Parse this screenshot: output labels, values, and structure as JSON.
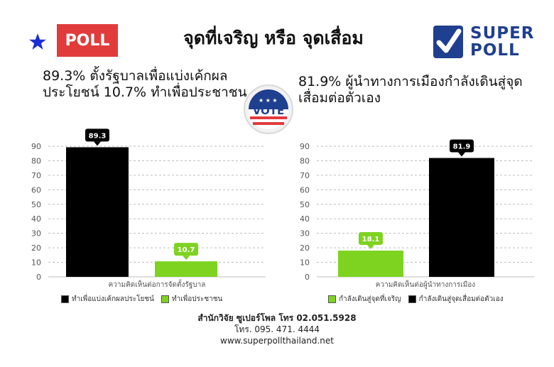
{
  "header": {
    "badge": "POLL",
    "title": "จุดที่เจริญ หรือ จุดเสื่อม",
    "logo_line1": "SUPER",
    "logo_line2": "POLL",
    "vote_badge": "VOTE",
    "accent_red": "#e23b3b",
    "brand_blue": "#1f3f8f"
  },
  "left_heading": "89.3% ตั้งรัฐบาลเพื่อแบ่งเค้กผลประโยชน์ 10.7% ทำเพื่อประชาชน",
  "right_heading": "81.9% ผู้นำทางการเมืองกำลังเดินสู่จุดเสื่อมต่อตัวเอง",
  "chart_data": [
    {
      "type": "bar",
      "xlabel": "ความคิดเห็นต่อการจัดตั้งรัฐบาล",
      "ylim": [
        0,
        90
      ],
      "yticks": [
        0,
        10,
        20,
        30,
        40,
        50,
        60,
        70,
        80,
        90
      ],
      "grid": true,
      "legend_position": "bottom",
      "series": [
        {
          "name": "ทำเพื่อแบ่งเค้กผลประโยชน์",
          "value": 89.3,
          "label": "89.3",
          "color": "#000000"
        },
        {
          "name": "ทำเพื่อประชาชน",
          "value": 10.7,
          "label": "10.7",
          "color": "#7ed321"
        }
      ]
    },
    {
      "type": "bar",
      "xlabel": "ความคิดเห็นต่อผู้นำทางการเมือง",
      "ylim": [
        0,
        90
      ],
      "yticks": [
        0,
        10,
        20,
        30,
        40,
        50,
        60,
        70,
        80,
        90
      ],
      "grid": true,
      "legend_position": "bottom",
      "series": [
        {
          "name": "กำลังเดินสู่จุดที่เจริญ",
          "value": 18.1,
          "label": "18.1",
          "color": "#7ed321"
        },
        {
          "name": "กำลังเดินสู่จุดเสื่อมต่อตัวเอง",
          "value": 81.9,
          "label": "81.9",
          "color": "#000000"
        }
      ]
    }
  ],
  "footer": {
    "line1": "สำนักวิจัย ซูเปอร์โพล โทร 02.051.5928",
    "line2": "โทร. 095. 471. 4444",
    "line3": "www.superpollthailand.net"
  }
}
